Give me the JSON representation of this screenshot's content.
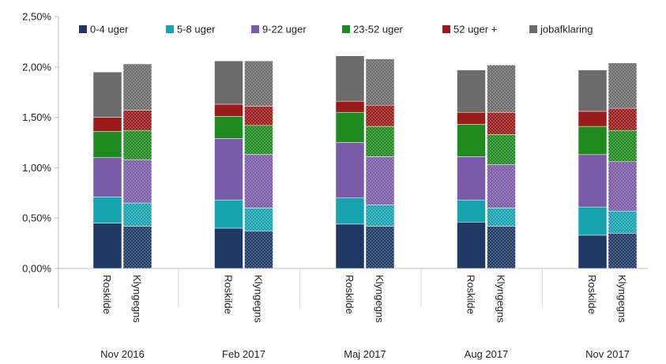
{
  "chart_data": {
    "type": "bar",
    "stacked": true,
    "y_tick_labels": [
      "0,00%",
      "0,50%",
      "1,00%",
      "1,50%",
      "2,00%",
      "2,50%"
    ],
    "ylim": [
      0,
      2.5
    ],
    "grid": false,
    "legend_position": "top",
    "groups": [
      "Nov 2016",
      "Feb 2017",
      "Maj 2017",
      "Aug 2017",
      "Nov 2017"
    ],
    "categories": [
      "Roskilde",
      "Klyngegns"
    ],
    "series": [
      {
        "name": "0-4 uger",
        "color": "#1f3864",
        "values": [
          [
            0.45,
            0.42
          ],
          [
            0.4,
            0.37
          ],
          [
            0.44,
            0.42
          ],
          [
            0.46,
            0.42
          ],
          [
            0.33,
            0.35
          ]
        ]
      },
      {
        "name": "5-8 uger",
        "color": "#17a2b0",
        "values": [
          [
            0.26,
            0.23
          ],
          [
            0.28,
            0.23
          ],
          [
            0.26,
            0.21
          ],
          [
            0.22,
            0.18
          ],
          [
            0.28,
            0.22
          ]
        ]
      },
      {
        "name": "9-22 uger",
        "color": "#7b5ba8",
        "values": [
          [
            0.39,
            0.43
          ],
          [
            0.61,
            0.53
          ],
          [
            0.55,
            0.48
          ],
          [
            0.43,
            0.43
          ],
          [
            0.52,
            0.49
          ]
        ]
      },
      {
        "name": "23-52 uger",
        "color": "#1f8a1f",
        "values": [
          [
            0.26,
            0.29
          ],
          [
            0.22,
            0.29
          ],
          [
            0.3,
            0.3
          ],
          [
            0.32,
            0.3
          ],
          [
            0.28,
            0.31
          ]
        ]
      },
      {
        "name": "52 uger +",
        "color": "#9b1b1b",
        "values": [
          [
            0.14,
            0.2
          ],
          [
            0.12,
            0.19
          ],
          [
            0.11,
            0.21
          ],
          [
            0.12,
            0.22
          ],
          [
            0.15,
            0.22
          ]
        ]
      },
      {
        "name": "jobafklaring",
        "color": "#6b6b6b",
        "values": [
          [
            0.45,
            0.46
          ],
          [
            0.43,
            0.45
          ],
          [
            0.45,
            0.46
          ],
          [
            0.42,
            0.47
          ],
          [
            0.41,
            0.45
          ]
        ]
      }
    ]
  }
}
